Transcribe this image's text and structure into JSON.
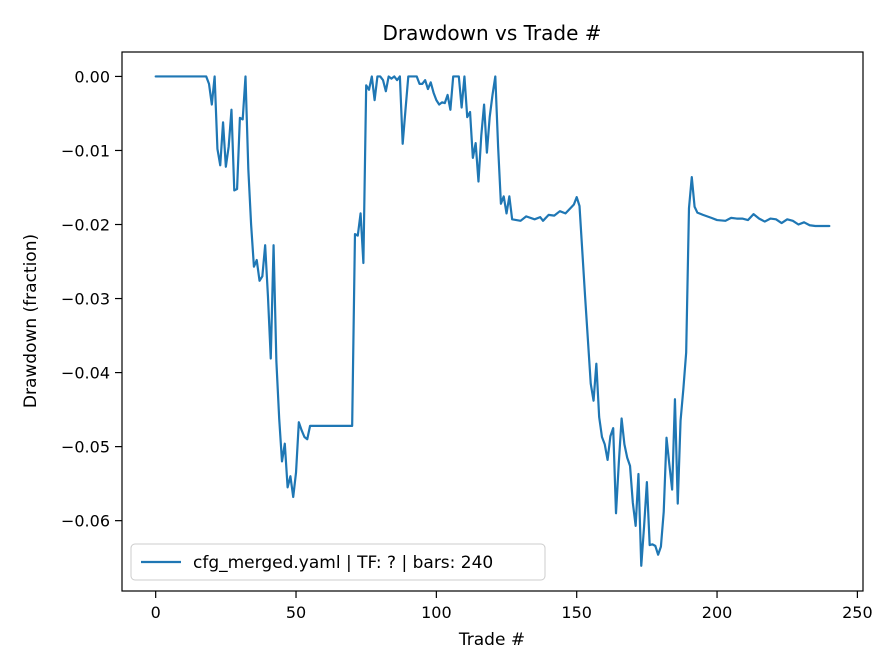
{
  "chart_data": {
    "type": "line",
    "title": "Drawdown vs Trade #",
    "xlabel": "Trade #",
    "ylabel": "Drawdown (fraction)",
    "xlim": [
      -12,
      252
    ],
    "ylim": [
      -0.0695,
      0.0033
    ],
    "x_ticks": [
      0,
      50,
      100,
      150,
      200,
      250
    ],
    "x_tick_labels": [
      "0",
      "50",
      "100",
      "150",
      "200",
      "250"
    ],
    "y_ticks": [
      0.0,
      -0.01,
      -0.02,
      -0.03,
      -0.04,
      -0.05,
      -0.06
    ],
    "y_tick_labels": [
      "0.00",
      "−0.01",
      "−0.02",
      "−0.03",
      "−0.04",
      "−0.05",
      "−0.06"
    ],
    "grid": false,
    "legend_position": "lower-left",
    "series": [
      {
        "name": "cfg_merged.yaml | TF: ? | bars: 240",
        "color": "#1f77b4",
        "points": [
          [
            0,
            0
          ],
          [
            18,
            0
          ],
          [
            19,
            -0.001
          ],
          [
            20,
            -0.0038
          ],
          [
            21,
            0
          ],
          [
            22,
            -0.0098
          ],
          [
            23,
            -0.012
          ],
          [
            24,
            -0.0062
          ],
          [
            25,
            -0.0122
          ],
          [
            26,
            -0.0095
          ],
          [
            27,
            -0.0045
          ],
          [
            28,
            -0.0154
          ],
          [
            29,
            -0.0152
          ],
          [
            30,
            -0.0056
          ],
          [
            31,
            -0.0058
          ],
          [
            32,
            0
          ],
          [
            33,
            -0.0125
          ],
          [
            34,
            -0.02
          ],
          [
            35,
            -0.0257
          ],
          [
            36,
            -0.0248
          ],
          [
            37,
            -0.0276
          ],
          [
            38,
            -0.027
          ],
          [
            39,
            -0.0228
          ],
          [
            40,
            -0.0297
          ],
          [
            41,
            -0.0381
          ],
          [
            42,
            -0.0228
          ],
          [
            43,
            -0.0385
          ],
          [
            44,
            -0.0462
          ],
          [
            45,
            -0.052
          ],
          [
            46,
            -0.0496
          ],
          [
            47,
            -0.0555
          ],
          [
            48,
            -0.054
          ],
          [
            49,
            -0.0568
          ],
          [
            50,
            -0.0535
          ],
          [
            51,
            -0.0467
          ],
          [
            52,
            -0.0478
          ],
          [
            53,
            -0.0487
          ],
          [
            54,
            -0.049
          ],
          [
            55,
            -0.0472
          ],
          [
            70,
            -0.0472
          ],
          [
            71,
            -0.0213
          ],
          [
            72,
            -0.0215
          ],
          [
            73,
            -0.0185
          ],
          [
            74,
            -0.0252
          ],
          [
            75,
            -0.0012
          ],
          [
            76,
            -0.0018
          ],
          [
            77,
            0
          ],
          [
            78,
            -0.0032
          ],
          [
            79,
            0
          ],
          [
            80,
            0
          ],
          [
            81,
            -0.0005
          ],
          [
            82,
            -0.002
          ],
          [
            83,
            0
          ],
          [
            84,
            -0.0003
          ],
          [
            85,
            0
          ],
          [
            86,
            -0.0005
          ],
          [
            87,
            0
          ],
          [
            88,
            -0.0091
          ],
          [
            89,
            -0.0045
          ],
          [
            90,
            0
          ],
          [
            91,
            0
          ],
          [
            92,
            0
          ],
          [
            93,
            0
          ],
          [
            94,
            -0.001
          ],
          [
            95,
            -0.001
          ],
          [
            96,
            -0.0005
          ],
          [
            97,
            -0.0017
          ],
          [
            98,
            -0.0008
          ],
          [
            99,
            -0.0022
          ],
          [
            100,
            -0.0032
          ],
          [
            101,
            -0.0038
          ],
          [
            102,
            -0.0035
          ],
          [
            103,
            -0.0036
          ],
          [
            104,
            -0.0025
          ],
          [
            105,
            -0.0045
          ],
          [
            106,
            0
          ],
          [
            107,
            0
          ],
          [
            108,
            0
          ],
          [
            109,
            -0.0042
          ],
          [
            110,
            0
          ],
          [
            111,
            -0.0055
          ],
          [
            112,
            -0.0048
          ],
          [
            113,
            -0.011
          ],
          [
            114,
            -0.009
          ],
          [
            115,
            -0.0142
          ],
          [
            116,
            -0.008
          ],
          [
            117,
            -0.0038
          ],
          [
            118,
            -0.0103
          ],
          [
            119,
            -0.0055
          ],
          [
            120,
            -0.0025
          ],
          [
            121,
            0
          ],
          [
            122,
            -0.0095
          ],
          [
            123,
            -0.0172
          ],
          [
            124,
            -0.0162
          ],
          [
            125,
            -0.0185
          ],
          [
            126,
            -0.0162
          ],
          [
            127,
            -0.0193
          ],
          [
            130,
            -0.0195
          ],
          [
            132,
            -0.0189
          ],
          [
            135,
            -0.0193
          ],
          [
            137,
            -0.019
          ],
          [
            138,
            -0.0195
          ],
          [
            140,
            -0.0187
          ],
          [
            142,
            -0.0188
          ],
          [
            144,
            -0.0182
          ],
          [
            146,
            -0.0185
          ],
          [
            148,
            -0.0177
          ],
          [
            149,
            -0.0173
          ],
          [
            150,
            -0.0163
          ],
          [
            151,
            -0.0175
          ],
          [
            153,
            -0.0298
          ],
          [
            155,
            -0.0415
          ],
          [
            156,
            -0.0438
          ],
          [
            157,
            -0.0388
          ],
          [
            158,
            -0.046
          ],
          [
            159,
            -0.0487
          ],
          [
            160,
            -0.0497
          ],
          [
            161,
            -0.0518
          ],
          [
            162,
            -0.0486
          ],
          [
            163,
            -0.0475
          ],
          [
            164,
            -0.059
          ],
          [
            165,
            -0.0522
          ],
          [
            166,
            -0.0462
          ],
          [
            167,
            -0.0497
          ],
          [
            168,
            -0.0515
          ],
          [
            169,
            -0.0526
          ],
          [
            170,
            -0.0576
          ],
          [
            171,
            -0.0607
          ],
          [
            172,
            -0.0537
          ],
          [
            173,
            -0.0661
          ],
          [
            174,
            -0.0608
          ],
          [
            175,
            -0.0548
          ],
          [
            176,
            -0.0633
          ],
          [
            177,
            -0.0632
          ],
          [
            178,
            -0.0634
          ],
          [
            179,
            -0.0646
          ],
          [
            180,
            -0.0635
          ],
          [
            181,
            -0.0588
          ],
          [
            182,
            -0.0488
          ],
          [
            183,
            -0.0524
          ],
          [
            184,
            -0.0558
          ],
          [
            185,
            -0.0436
          ],
          [
            186,
            -0.0577
          ],
          [
            187,
            -0.0465
          ],
          [
            188,
            -0.0422
          ],
          [
            189,
            -0.0373
          ],
          [
            190,
            -0.0178
          ],
          [
            191,
            -0.0136
          ],
          [
            192,
            -0.0176
          ],
          [
            193,
            -0.0184
          ],
          [
            195,
            -0.0187
          ],
          [
            198,
            -0.0191
          ],
          [
            200,
            -0.0194
          ],
          [
            203,
            -0.0195
          ],
          [
            205,
            -0.0191
          ],
          [
            207,
            -0.0192
          ],
          [
            209,
            -0.0192
          ],
          [
            211,
            -0.0194
          ],
          [
            213,
            -0.0186
          ],
          [
            215,
            -0.0192
          ],
          [
            217,
            -0.0196
          ],
          [
            219,
            -0.0192
          ],
          [
            221,
            -0.0193
          ],
          [
            223,
            -0.0198
          ],
          [
            225,
            -0.0193
          ],
          [
            227,
            -0.0195
          ],
          [
            229,
            -0.02
          ],
          [
            231,
            -0.0197
          ],
          [
            233,
            -0.0201
          ],
          [
            235,
            -0.0202
          ],
          [
            240,
            -0.0202
          ]
        ]
      }
    ]
  }
}
